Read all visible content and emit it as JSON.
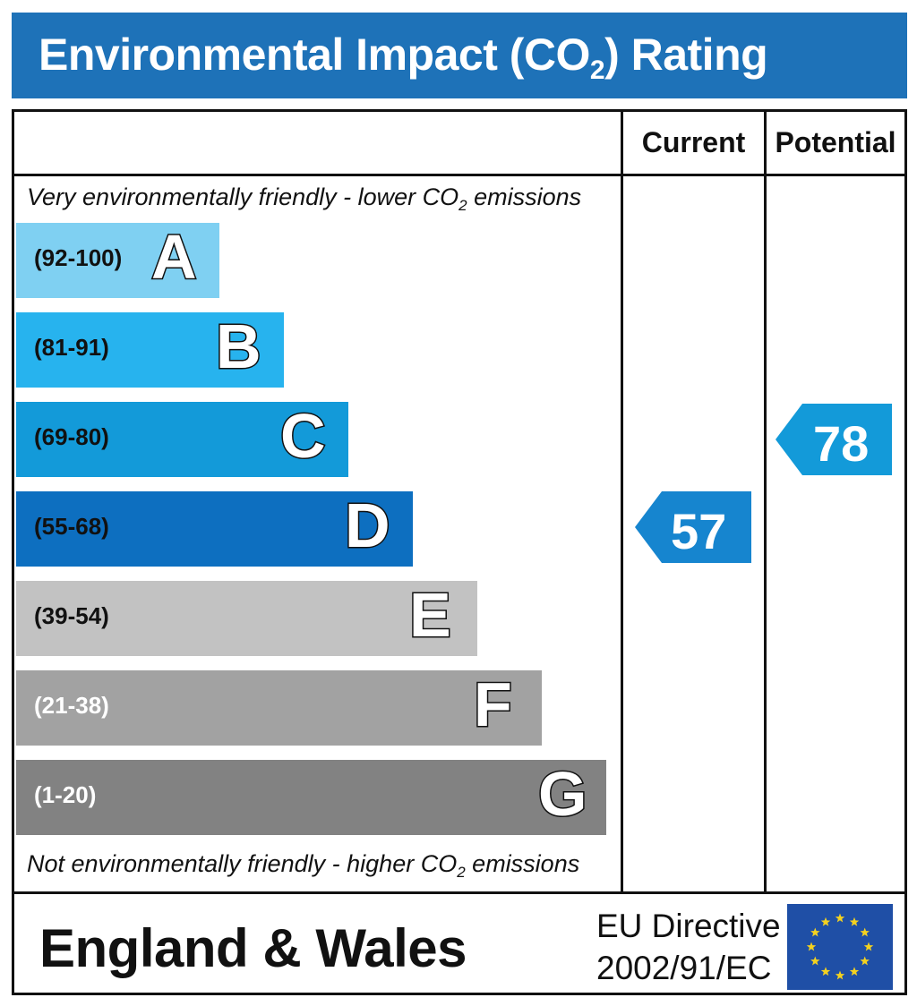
{
  "title": {
    "main": "Environmental Impact (CO",
    "sub": "2",
    "tail": ") Rating"
  },
  "columns": {
    "current": "Current",
    "potential": "Potential"
  },
  "notes": {
    "top": {
      "text": "Very environmentally friendly - lower CO",
      "sub": "2",
      "tail": " emissions"
    },
    "bottom": {
      "text": "Not environmentally friendly - higher CO",
      "sub": "2",
      "tail": " emissions"
    }
  },
  "chart_data": {
    "type": "table",
    "bands": [
      {
        "letter": "A",
        "range": "(92-100)",
        "color": "#7fd0f2",
        "range_color": "#111111"
      },
      {
        "letter": "B",
        "range": "(81-91)",
        "color": "#27b3ee",
        "range_color": "#111111"
      },
      {
        "letter": "C",
        "range": "(69-80)",
        "color": "#139ad9",
        "range_color": "#111111"
      },
      {
        "letter": "D",
        "range": "(55-68)",
        "color": "#0d6fc0",
        "range_color": "#111111"
      },
      {
        "letter": "E",
        "range": "(39-54)",
        "color": "#c2c2c2",
        "range_color": "#111111"
      },
      {
        "letter": "F",
        "range": "(21-38)",
        "color": "#a2a2a2",
        "range_color": "#ffffff"
      },
      {
        "letter": "G",
        "range": "(1-20)",
        "color": "#828282",
        "range_color": "#ffffff"
      }
    ],
    "current": {
      "value": 57,
      "label": "57",
      "color": "#1685cf"
    },
    "potential": {
      "value": 78,
      "label": "78",
      "color": "#139ad9"
    }
  },
  "footer": {
    "region": "England & Wales",
    "directive_line1": "EU Directive",
    "directive_line2": "2002/91/EC",
    "flag_icon": "eu-flag-icon"
  },
  "colors": {
    "title_bar": "#1e72b8",
    "flag_bg": "#1f4fa6",
    "flag_star": "#f4d21f"
  }
}
